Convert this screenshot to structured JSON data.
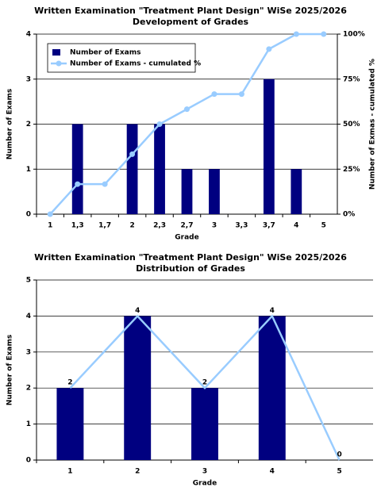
{
  "chart_data": [
    {
      "type": "bar",
      "title": "Written Examination \"Treatment Plant Design\" WiSe 2025/2026",
      "subtitle": "Development of Grades",
      "x_label": "Grade",
      "y_label": "Number of Exams",
      "y2_label": "Number of Exmas - cumulated %",
      "categories": [
        "1",
        "1,3",
        "1,7",
        "2",
        "2,3",
        "2,7",
        "3",
        "3,3",
        "3,7",
        "4",
        "5"
      ],
      "series": [
        {
          "name": "Number of Exams",
          "type": "bar",
          "color": "#000080",
          "values": [
            0,
            2,
            0,
            2,
            2,
            1,
            1,
            0,
            3,
            1,
            0
          ]
        },
        {
          "name": "Number of Exams - cumulated %",
          "type": "line",
          "axis": "y2",
          "color": "#99ccff",
          "marker": true,
          "values": [
            0,
            16.7,
            16.7,
            33.3,
            50,
            58.3,
            66.7,
            66.7,
            91.7,
            100,
            100
          ]
        }
      ],
      "ylim": [
        0,
        4
      ],
      "yticks": [
        0,
        1,
        2,
        3,
        4
      ],
      "y2lim": [
        0,
        100
      ],
      "y2ticks": [
        {
          "value": 0,
          "label": "0%"
        },
        {
          "value": 25,
          "label": "25%"
        },
        {
          "value": 50,
          "label": "50%"
        },
        {
          "value": 75,
          "label": "75%"
        },
        {
          "value": 100,
          "label": "100%"
        }
      ],
      "grid": true,
      "legend": "upper left"
    },
    {
      "type": "bar",
      "title": "Written Examination \"Treatment Plant Design\" WiSe 2025/2026",
      "subtitle": "Distribution of Grades",
      "x_label": "Grade",
      "y_label": "Number of Exams",
      "categories": [
        "1",
        "2",
        "3",
        "4",
        "5"
      ],
      "series": [
        {
          "type": "bar",
          "color": "#000080",
          "data_labels": true,
          "values": [
            2,
            4,
            2,
            4,
            0
          ]
        },
        {
          "type": "line",
          "color": "#99ccff",
          "values": [
            2,
            4,
            2,
            4,
            0
          ]
        }
      ],
      "ylim": [
        0,
        5
      ],
      "yticks": [
        0,
        1,
        2,
        3,
        4,
        5
      ],
      "grid": true
    }
  ]
}
